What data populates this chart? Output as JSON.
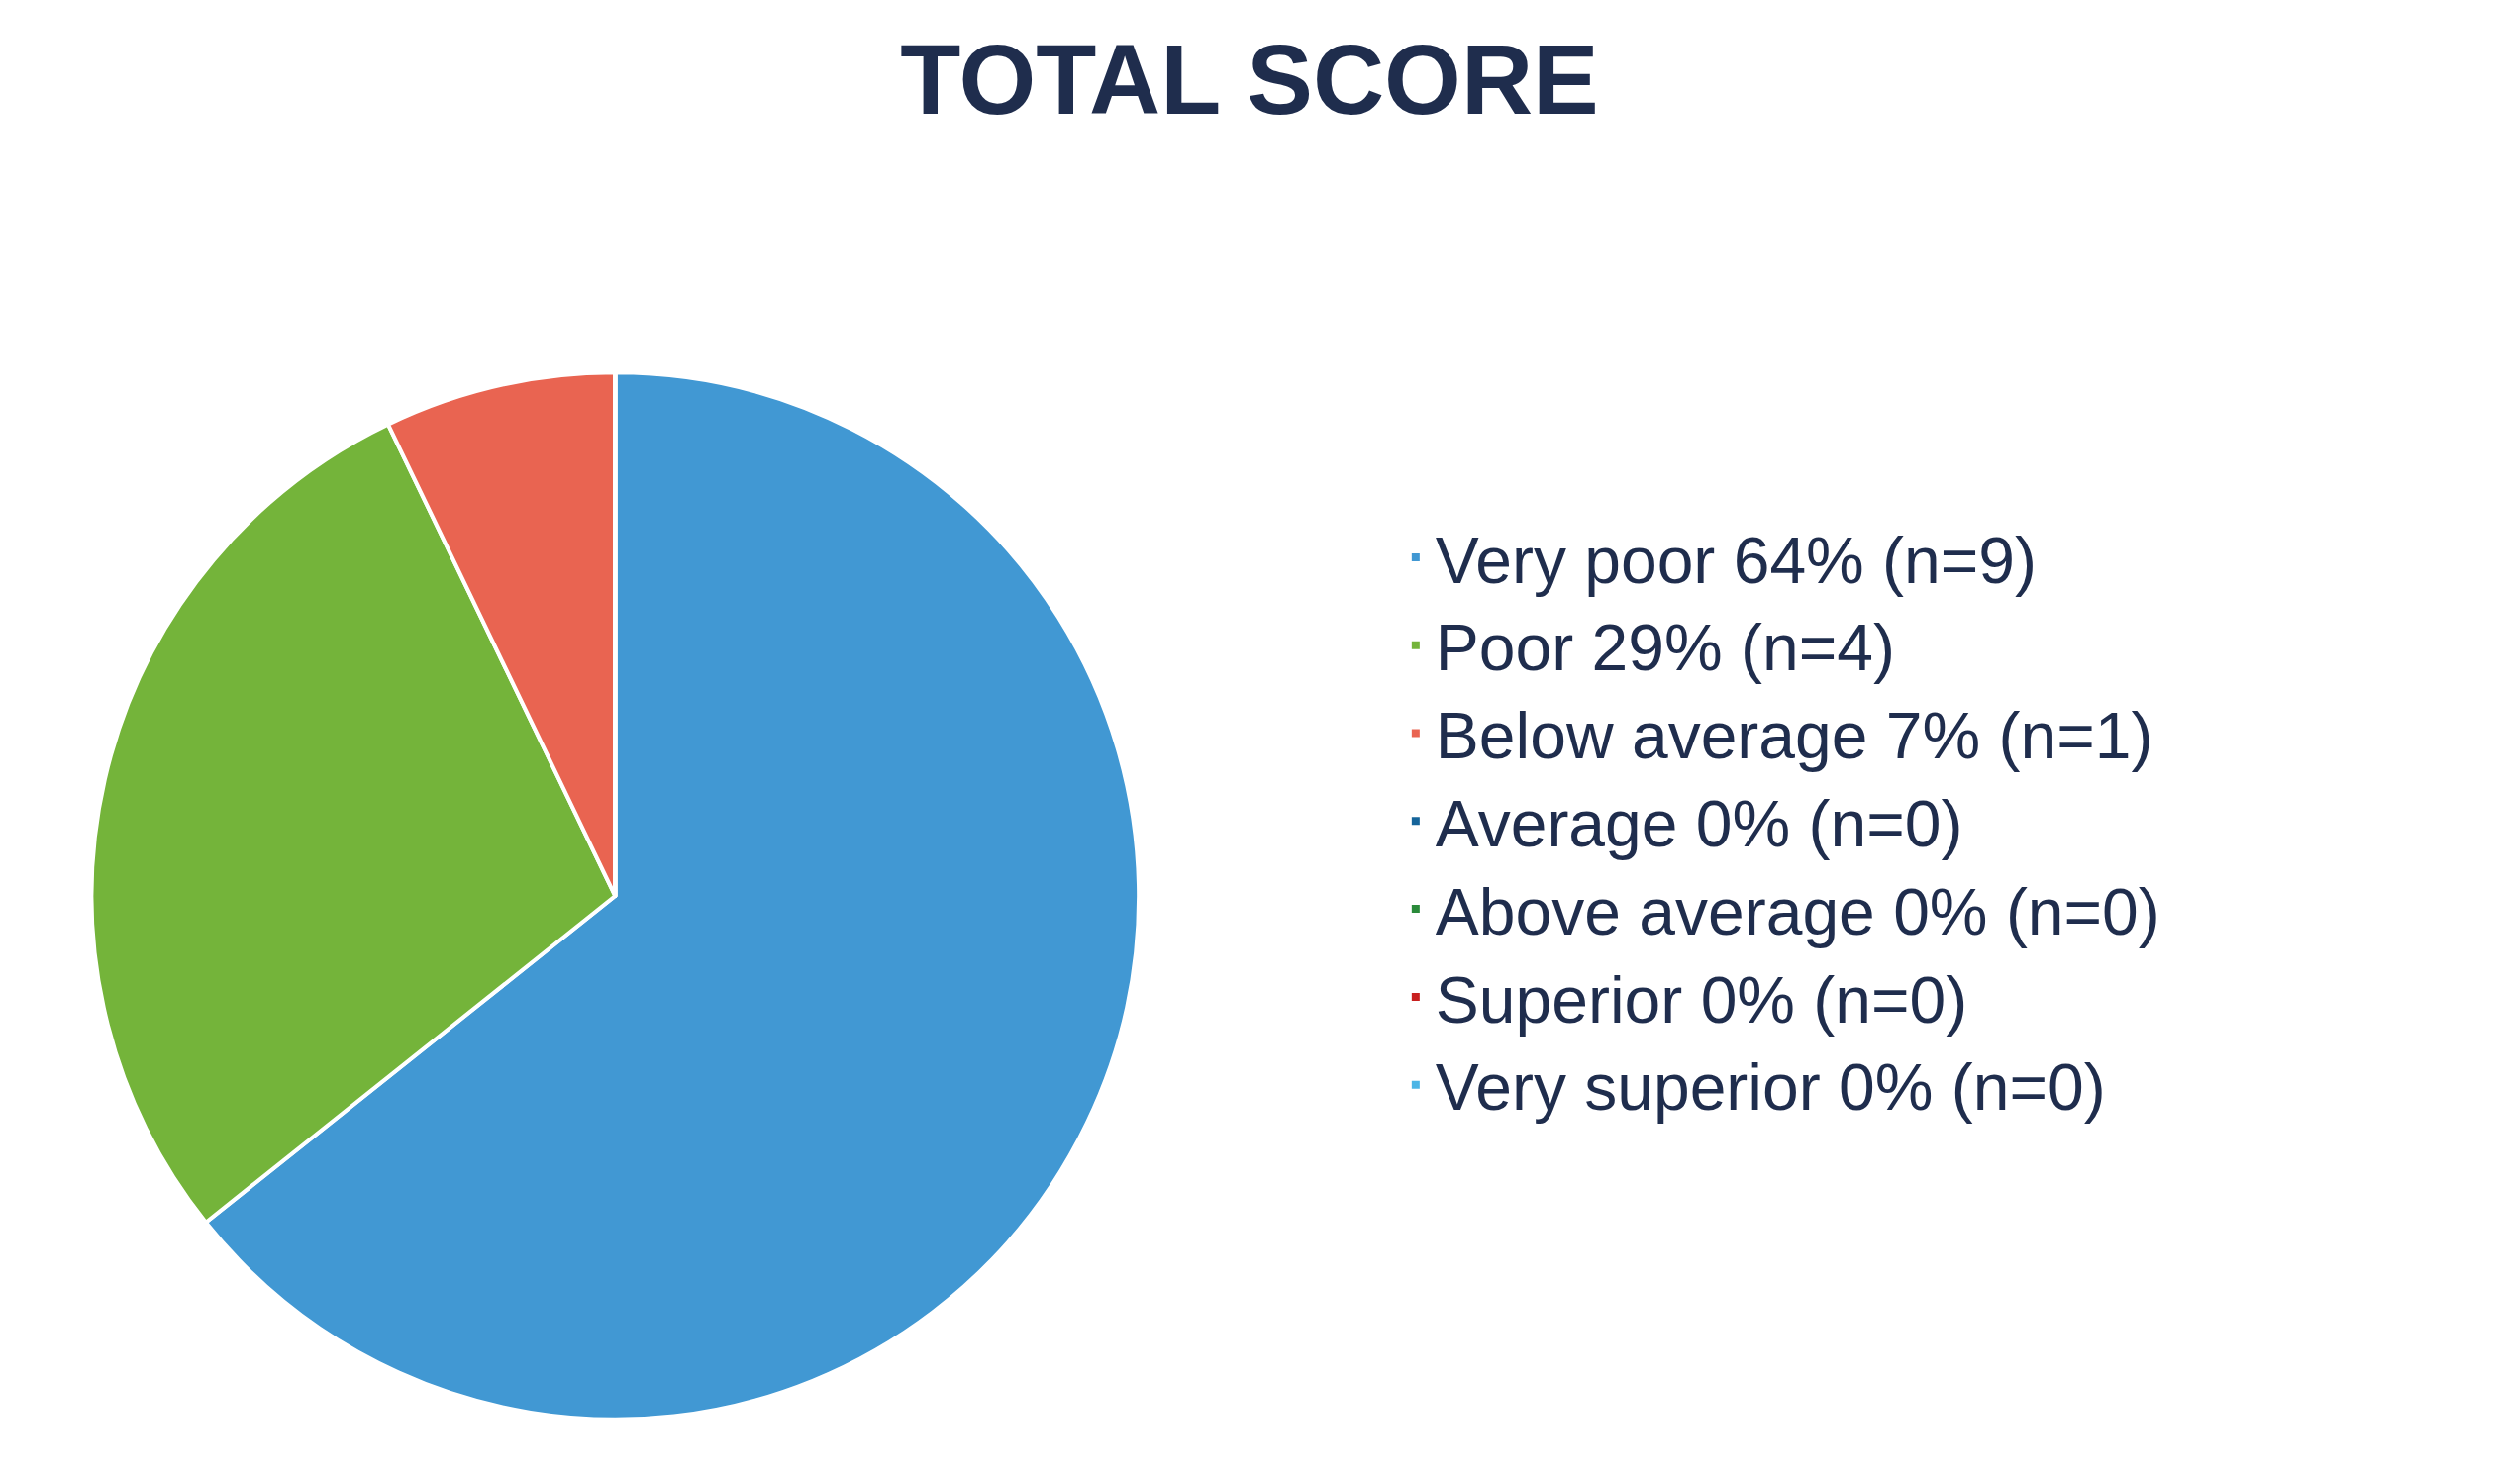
{
  "chart_data": {
    "type": "pie",
    "title": "TOTAL SCORE",
    "categories": [
      "Very poor 64% (n=9)",
      "Poor 29% (n=4)",
      "Below average 7% (n=1)",
      "Average 0% (n=0)",
      "Above average 0% (n=0)",
      "Superior 0% (n=0)",
      "Very superior 0% (n=0)"
    ],
    "values": [
      9,
      4,
      1,
      0,
      0,
      0,
      0
    ],
    "colors": [
      "#4198d3",
      "#74b43a",
      "#e96451",
      "#15649a",
      "#2a8a3a",
      "#c8201f",
      "#4bb5e6"
    ],
    "legend": "right"
  }
}
